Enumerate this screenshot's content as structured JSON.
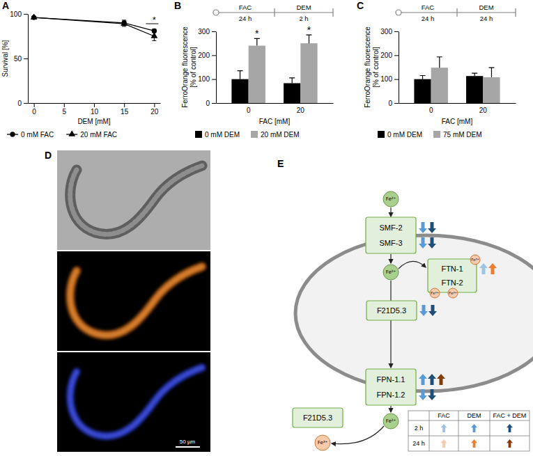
{
  "chart_data": [
    {
      "panel_label": "A",
      "type": "line",
      "x": [
        0,
        15,
        20
      ],
      "x_label": "DEM [mM]",
      "y_label": "Survival [%]",
      "xlim": [
        -1,
        21
      ],
      "xticks": [
        0,
        5,
        10,
        15,
        20
      ],
      "ylim": [
        0,
        100
      ],
      "yticks": [
        0,
        50,
        100
      ],
      "series": [
        {
          "name": "0 mM FAC",
          "color": "#000000",
          "marker": "circle",
          "line_style": "solid",
          "values": [
            96,
            90,
            81
          ],
          "errors": [
            1,
            3,
            2
          ]
        },
        {
          "name": "20 mM FAC",
          "color": "#000000",
          "marker": "triangle",
          "line_style": "solid",
          "values": [
            96,
            89,
            75
          ],
          "errors": [
            1,
            3,
            5
          ]
        }
      ],
      "annotations": [
        {
          "text": "*",
          "x": 20,
          "y": 89
        }
      ],
      "legend": "bottom"
    },
    {
      "panel_label": "B",
      "type": "bar",
      "timeline": [
        {
          "label": "FAC",
          "duration": "24 h"
        },
        {
          "label": "DEM",
          "duration": "2 h"
        }
      ],
      "categories": [
        "0",
        "20"
      ],
      "x_label": "FAC [mM]",
      "y_label": "FerroOrange fluorescence [% of control]",
      "ylim": [
        0,
        300
      ],
      "yticks": [
        0,
        100,
        200,
        300
      ],
      "series": [
        {
          "name": "0 mM DEM",
          "color": "#000000",
          "values": [
            100,
            83
          ],
          "errors": [
            35,
            22
          ]
        },
        {
          "name": "20 mM DEM",
          "color": "#a6a6a6",
          "values": [
            240,
            250
          ],
          "errors": [
            30,
            35
          ],
          "significance": [
            "*",
            "*"
          ]
        }
      ],
      "legend": "bottom"
    },
    {
      "panel_label": "C",
      "type": "bar",
      "timeline": [
        {
          "label": "FAC",
          "duration": "24 h"
        },
        {
          "label": "DEM",
          "duration": "24 h"
        }
      ],
      "categories": [
        "0",
        "20"
      ],
      "x_label": "FAC [mM]",
      "y_label": "FerroOrange fluorescence [% of control]",
      "ylim": [
        0,
        300
      ],
      "yticks": [
        0,
        100,
        200,
        300
      ],
      "series": [
        {
          "name": "0 mM DEM",
          "color": "#000000",
          "values": [
            100,
            113
          ],
          "errors": [
            15,
            12
          ]
        },
        {
          "name": "75 mM DEM",
          "color": "#a6a6a6",
          "values": [
            148,
            108
          ],
          "errors": [
            45,
            40
          ]
        }
      ],
      "legend": "bottom"
    }
  ],
  "image_panel": {
    "panel_label": "D",
    "scale_bar": "50 µm"
  },
  "diagram": {
    "panel_label": "E",
    "iron": {
      "ferrous": "Fe²⁺",
      "ferric": "Fe³⁺"
    },
    "import": [
      {
        "label": "SMF-2",
        "arrows": [
          {
            "time": "2 h",
            "treatment": "DEM",
            "direction": "down"
          },
          {
            "time": "2 h",
            "treatment": "FAC + DEM",
            "direction": "down"
          }
        ]
      },
      {
        "label": "SMF-3",
        "arrows": [
          {
            "time": "2 h",
            "treatment": "DEM",
            "direction": "down"
          },
          {
            "time": "2 h",
            "treatment": "FAC + DEM",
            "direction": "down"
          }
        ]
      }
    ],
    "storage": [
      {
        "label": "FTN-1",
        "arrows": [
          {
            "time": "2 h",
            "treatment": "FAC",
            "direction": "up"
          },
          {
            "time": "24 h",
            "treatment": "DEM",
            "direction": "up"
          }
        ]
      },
      {
        "label": "FTN-2",
        "arrows": []
      }
    ],
    "ferroxidase_in": [
      {
        "label": "F21D5.3",
        "arrows": [
          {
            "time": "2 h",
            "treatment": "DEM",
            "direction": "down"
          },
          {
            "time": "2 h",
            "treatment": "FAC + DEM",
            "direction": "down"
          }
        ]
      }
    ],
    "export": [
      {
        "label": "FPN-1.1",
        "arrows": [
          {
            "time": "2 h",
            "treatment": "DEM",
            "direction": "up"
          },
          {
            "time": "2 h",
            "treatment": "FAC + DEM",
            "direction": "up"
          },
          {
            "time": "24 h",
            "treatment": "FAC + DEM",
            "direction": "up"
          }
        ]
      },
      {
        "label": "FPN-1.2",
        "arrows": [
          {
            "time": "2 h",
            "treatment": "DEM",
            "direction": "down"
          },
          {
            "time": "2 h",
            "treatment": "FAC + DEM",
            "direction": "down"
          }
        ]
      }
    ],
    "ferroxidase_out": [
      {
        "label": "F21D5.3",
        "arrows": []
      }
    ],
    "legend_table": {
      "columns": [
        "FAC",
        "DEM",
        "FAC + DEM"
      ],
      "rows": [
        "2 h",
        "24 h"
      ],
      "colors": [
        [
          "#9dc3e6",
          "#5b9bd5",
          "#1f4e79"
        ],
        [
          "#f8cbad",
          "#ed7d31",
          "#843c0c"
        ]
      ]
    }
  }
}
